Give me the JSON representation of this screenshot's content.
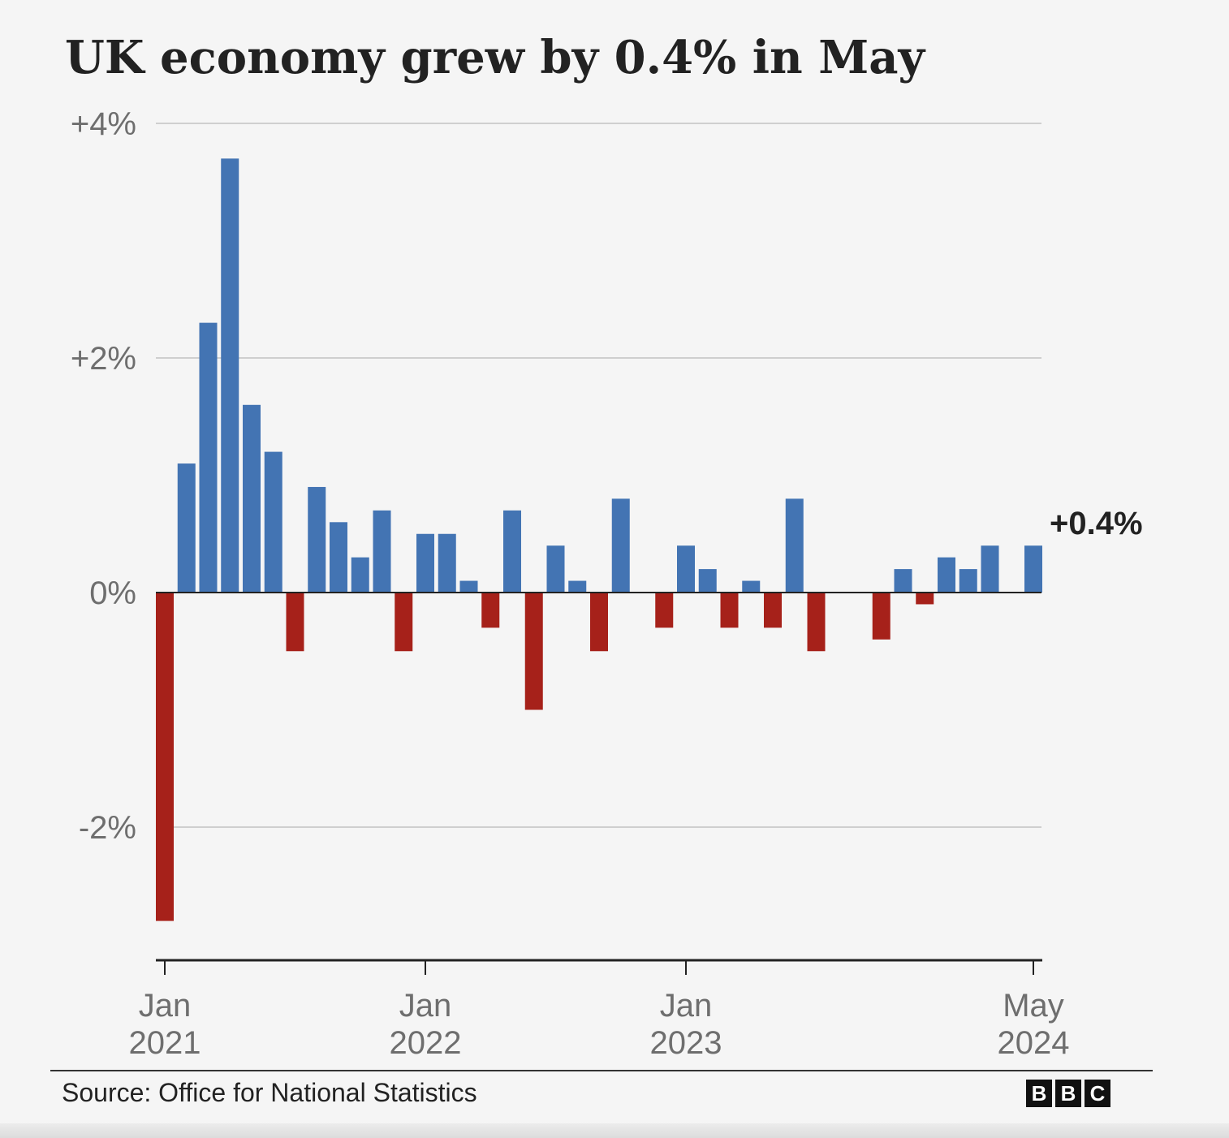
{
  "chart_data": {
    "type": "bar",
    "title": "UK economy grew by 0.4% in May",
    "xlabel": "",
    "ylabel": "",
    "ylim": [
      -3,
      4
    ],
    "yticks": [
      {
        "value": 4,
        "label": "+4%"
      },
      {
        "value": 2,
        "label": "+2%"
      },
      {
        "value": 0,
        "label": "0%"
      },
      {
        "value": -2,
        "label": "-2%"
      }
    ],
    "xticks": [
      {
        "month": "Jan",
        "year": "2021",
        "index": 0
      },
      {
        "month": "Jan",
        "year": "2022",
        "index": 12
      },
      {
        "month": "Jan",
        "year": "2023",
        "index": 24
      },
      {
        "month": "May",
        "year": "2024",
        "index": 40
      }
    ],
    "categories": [
      "Jan 2021",
      "Feb 2021",
      "Mar 2021",
      "Apr 2021",
      "May 2021",
      "Jun 2021",
      "Jul 2021",
      "Aug 2021",
      "Sep 2021",
      "Oct 2021",
      "Nov 2021",
      "Dec 2021",
      "Jan 2022",
      "Feb 2022",
      "Mar 2022",
      "Apr 2022",
      "May 2022",
      "Jun 2022",
      "Jul 2022",
      "Aug 2022",
      "Sep 2022",
      "Oct 2022",
      "Nov 2022",
      "Dec 2022",
      "Jan 2023",
      "Feb 2023",
      "Mar 2023",
      "Apr 2023",
      "May 2023",
      "Jun 2023",
      "Jul 2023",
      "Aug 2023",
      "Sep 2023",
      "Oct 2023",
      "Nov 2023",
      "Dec 2023",
      "Jan 2024",
      "Feb 2024",
      "Mar 2024",
      "Apr 2024",
      "May 2024"
    ],
    "values": [
      -2.8,
      1.1,
      2.3,
      3.7,
      1.6,
      1.2,
      -0.5,
      0.9,
      0.6,
      0.3,
      0.7,
      -0.5,
      0.5,
      0.5,
      0.1,
      -0.3,
      0.7,
      -1.0,
      0.4,
      0.1,
      -0.5,
      0.8,
      0.0,
      -0.3,
      0.4,
      0.2,
      -0.3,
      0.1,
      -0.3,
      0.8,
      -0.5,
      0.0,
      0.0,
      -0.4,
      0.2,
      -0.1,
      0.3,
      0.2,
      0.4,
      0.0,
      0.4
    ],
    "colors": {
      "positive": "#4374b3",
      "negative": "#a6211a"
    },
    "grid": true,
    "callout": {
      "label": "+0.4%",
      "index": 40
    },
    "source": "Source: Office for National Statistics",
    "logo": "BBC"
  }
}
